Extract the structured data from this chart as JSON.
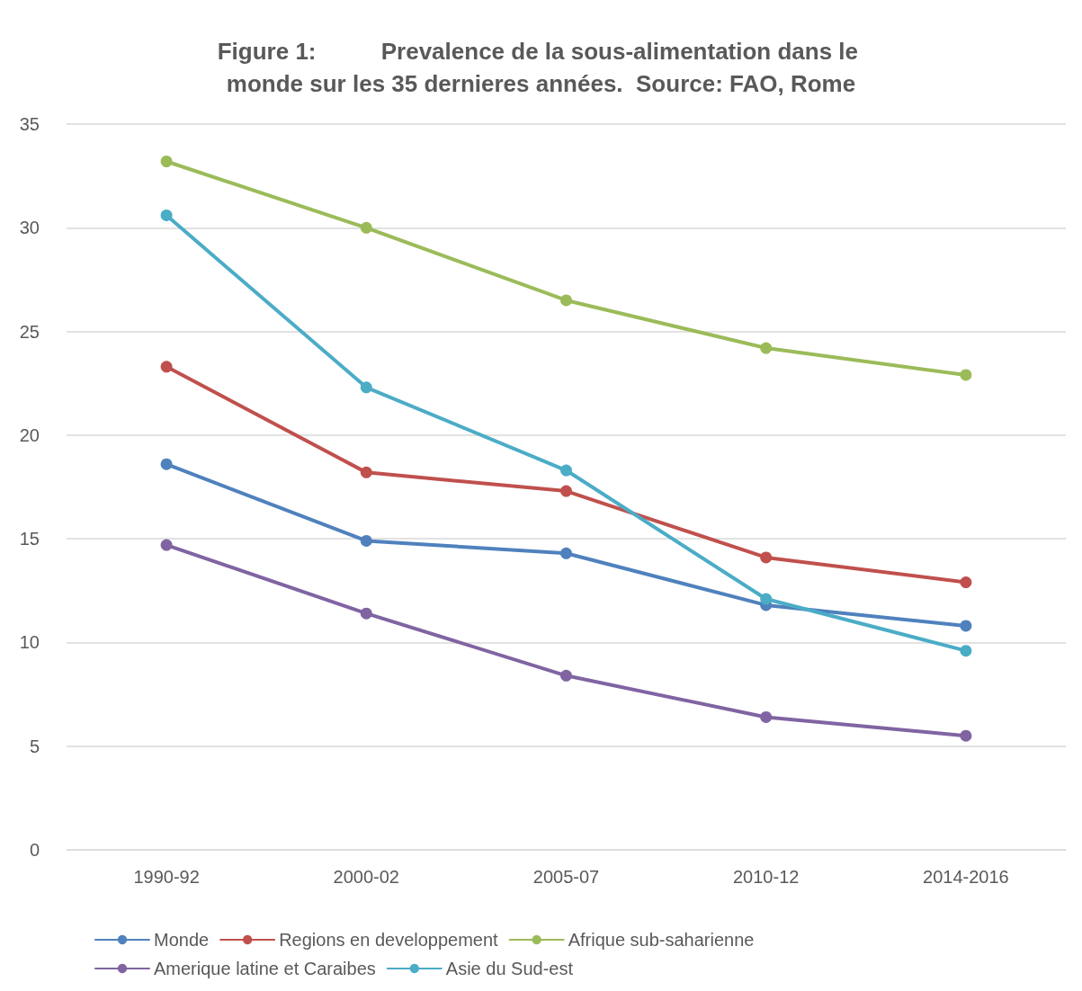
{
  "chart_data": {
    "type": "line",
    "title": "Figure 1:          Prevalence de la sous-alimentation dans le monde sur les 35 dernieres années.  Source: FAO, Rome",
    "categories": [
      "1990-92",
      "2000-02",
      "2005-07",
      "2010-12",
      "2014-2016"
    ],
    "series": [
      {
        "name": "Monde",
        "color": "#4f81bd",
        "values": [
          18.6,
          14.9,
          14.3,
          11.8,
          10.8
        ]
      },
      {
        "name": "Regions en developpement",
        "color": "#c0504d",
        "values": [
          23.3,
          18.2,
          17.3,
          14.1,
          12.9
        ]
      },
      {
        "name": "Afrique sub-saharienne",
        "color": "#9bbb59",
        "values": [
          33.2,
          30.0,
          26.5,
          24.2,
          22.9
        ]
      },
      {
        "name": "Amerique latine et Caraibes",
        "color": "#8064a2",
        "values": [
          14.7,
          11.4,
          8.4,
          6.4,
          5.5
        ]
      },
      {
        "name": "Asie du Sud-est",
        "color": "#4bacc6",
        "values": [
          30.6,
          22.3,
          18.3,
          12.1,
          9.6
        ]
      }
    ],
    "ylim": [
      0,
      35
    ],
    "yticks": [
      0,
      5,
      10,
      15,
      20,
      25,
      30,
      35
    ],
    "grid": "y",
    "legend": "bottom",
    "marker": "circle",
    "line_style": "solid"
  }
}
